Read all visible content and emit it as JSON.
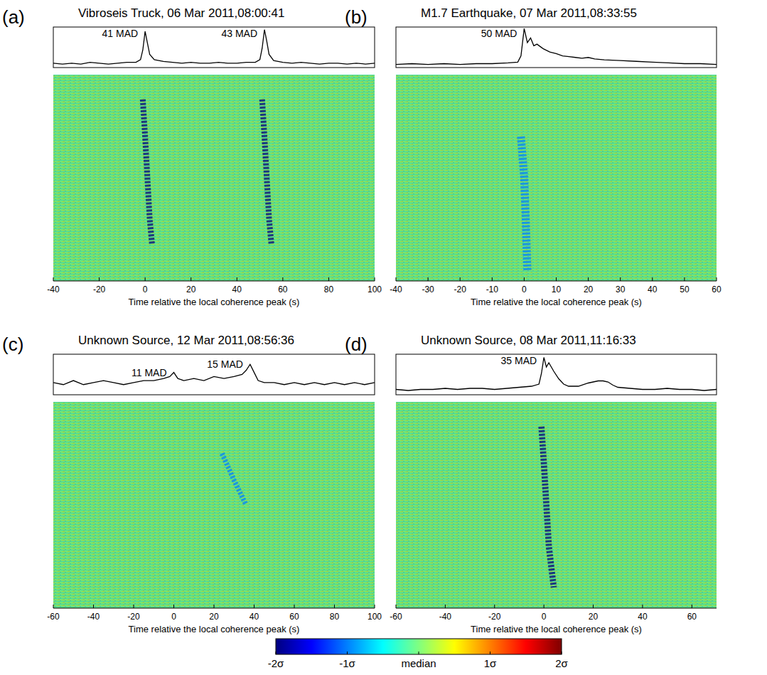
{
  "chart_data": [
    {
      "type": "heatmap",
      "label": "(a)",
      "title": "Vibroseis Truck, 06 Mar 2011,08:00:41",
      "xlabel": "Time relative the local coherence peak (s)",
      "xlim": [
        -40,
        100
      ],
      "xticks": [
        -40,
        -20,
        0,
        20,
        40,
        60,
        80,
        100
      ],
      "ylim": [
        0,
        100
      ],
      "tick_labels": "x",
      "coherence": {
        "ylim": [
          0,
          46
        ],
        "x": [
          -40,
          -36,
          -32,
          -28,
          -24,
          -20,
          -16,
          -12,
          -8,
          -4,
          -2,
          -1,
          0,
          1,
          2,
          4,
          8,
          12,
          16,
          20,
          24,
          28,
          32,
          36,
          40,
          44,
          48,
          50,
          51,
          52,
          53,
          54,
          56,
          60,
          64,
          68,
          72,
          76,
          80,
          84,
          88,
          92,
          96,
          100
        ],
        "values": [
          5,
          4,
          5,
          4,
          6,
          5,
          4,
          5,
          6,
          6,
          9,
          20,
          41,
          28,
          15,
          9,
          7,
          6,
          5,
          6,
          5,
          5,
          6,
          5,
          5,
          6,
          6,
          9,
          22,
          43,
          30,
          15,
          8,
          6,
          5,
          6,
          5,
          4,
          5,
          5,
          4,
          5,
          4,
          5
        ]
      },
      "annotations": [
        {
          "text": "41 MAD",
          "x": 0,
          "y": 41
        },
        {
          "text": "43 MAD",
          "x": 52,
          "y": 43
        }
      ],
      "arrivals": [
        {
          "time": [
            -1,
            0,
            1,
            2,
            3
          ],
          "channel": [
            88,
            70,
            50,
            30,
            18
          ],
          "value": -2
        },
        {
          "time": [
            51,
            52,
            53,
            54,
            55
          ],
          "channel": [
            88,
            70,
            50,
            30,
            18
          ],
          "value": -2
        }
      ]
    },
    {
      "type": "heatmap",
      "label": "(b)",
      "title": "M1.7 Earthquake, 07 Mar 2011,08:33:55",
      "xlabel": "Time relative the local coherence peak (s)",
      "xlim": [
        -40,
        60
      ],
      "xticks": [
        -40,
        -30,
        -20,
        -10,
        0,
        10,
        20,
        30,
        40,
        50,
        60
      ],
      "ylim": [
        0,
        100
      ],
      "tick_labels": "x",
      "coherence": {
        "ylim": [
          0,
          52
        ],
        "x": [
          -40,
          -35,
          -30,
          -25,
          -20,
          -15,
          -10,
          -5,
          -2,
          -1,
          0,
          1,
          2,
          3,
          4,
          6,
          8,
          10,
          12,
          14,
          16,
          18,
          20,
          22,
          25,
          30,
          35,
          40,
          45,
          50,
          55,
          60
        ],
        "values": [
          4,
          5,
          4,
          5,
          4,
          5,
          5,
          6,
          7,
          15,
          50,
          32,
          38,
          28,
          30,
          24,
          20,
          18,
          15,
          14,
          13,
          12,
          13,
          11,
          10,
          9,
          8,
          7,
          6,
          5,
          5,
          4
        ]
      },
      "annotations": [
        {
          "text": "50 MAD",
          "x": 0,
          "y": 50
        }
      ],
      "arrivals": [
        {
          "time": [
            -1,
            0,
            0.5,
            1
          ],
          "channel": [
            70,
            50,
            30,
            5
          ],
          "value": -1
        }
      ]
    },
    {
      "type": "heatmap",
      "label": "(c)",
      "title": "Unknown Source, 12 Mar 2011,08:56:36",
      "xlabel": "Time relative the local coherence peak (s)",
      "xlim": [
        -60,
        100
      ],
      "xticks": [
        -60,
        -40,
        -20,
        0,
        20,
        40,
        60,
        80,
        100
      ],
      "ylim": [
        0,
        100
      ],
      "tick_labels": "x",
      "coherence": {
        "ylim": [
          0,
          20
        ],
        "x": [
          -60,
          -55,
          -50,
          -45,
          -40,
          -35,
          -30,
          -25,
          -20,
          -15,
          -10,
          -5,
          -2,
          0,
          2,
          5,
          10,
          15,
          20,
          25,
          30,
          34,
          36,
          38,
          40,
          42,
          45,
          50,
          55,
          60,
          65,
          70,
          75,
          80,
          85,
          90,
          95,
          100
        ],
        "values": [
          6,
          5,
          7,
          5,
          6,
          7,
          6,
          5,
          6,
          7,
          7,
          8,
          9,
          11,
          8,
          7,
          8,
          7,
          9,
          8,
          9,
          10,
          12,
          15,
          11,
          7,
          6,
          6,
          5,
          6,
          5,
          6,
          5,
          6,
          5,
          6,
          5,
          6
        ]
      },
      "annotations": [
        {
          "text": "11 MAD",
          "x": 0,
          "y": 11
        },
        {
          "text": "15 MAD",
          "x": 38,
          "y": 15
        }
      ],
      "arrivals": [
        {
          "time": [
            24,
            30,
            36
          ],
          "channel": [
            75,
            62,
            50
          ],
          "value": -1
        }
      ]
    },
    {
      "type": "heatmap",
      "label": "(d)",
      "title": "Unknown Source, 08 Mar 2011,11:16:33",
      "xlabel": "Time relative the local coherence peak (s)",
      "xlim": [
        -60,
        70
      ],
      "xticks": [
        -60,
        -40,
        -20,
        0,
        20,
        40,
        60
      ],
      "ylim": [
        0,
        100
      ],
      "tick_labels": "x",
      "coherence": {
        "ylim": [
          0,
          38
        ],
        "x": [
          -60,
          -55,
          -50,
          -45,
          -40,
          -35,
          -30,
          -25,
          -20,
          -15,
          -10,
          -5,
          -2,
          -1,
          0,
          1,
          2,
          4,
          6,
          8,
          10,
          14,
          18,
          20,
          22,
          24,
          26,
          28,
          30,
          35,
          40,
          45,
          50,
          55,
          60,
          65,
          70
        ],
        "values": [
          5,
          4,
          5,
          5,
          6,
          5,
          6,
          6,
          5,
          6,
          7,
          8,
          10,
          20,
          35,
          26,
          30,
          22,
          15,
          10,
          8,
          8,
          11,
          12,
          13,
          13,
          12,
          9,
          7,
          6,
          5,
          5,
          6,
          5,
          5,
          4,
          5
        ]
      },
      "annotations": [
        {
          "text": "35 MAD",
          "x": 0,
          "y": 35
        }
      ],
      "arrivals": [
        {
          "time": [
            -1,
            0,
            1,
            2,
            4
          ],
          "channel": [
            88,
            70,
            50,
            30,
            10
          ],
          "value": -2
        }
      ]
    },
    {
      "type": "colorbar",
      "colors": [
        "#00007f",
        "#0000ff",
        "#0080ff",
        "#00ffff",
        "#80ff80",
        "#ffff00",
        "#ff8000",
        "#ff0000",
        "#7f0000"
      ],
      "xlim": [
        -2,
        2
      ],
      "xticks": [
        {
          "value": -2,
          "label": "-2σ"
        },
        {
          "value": -1,
          "label": "-1σ"
        },
        {
          "value": 0,
          "label": "median"
        },
        {
          "value": 1,
          "label": "1σ"
        },
        {
          "value": 2,
          "label": "2σ"
        }
      ]
    }
  ]
}
